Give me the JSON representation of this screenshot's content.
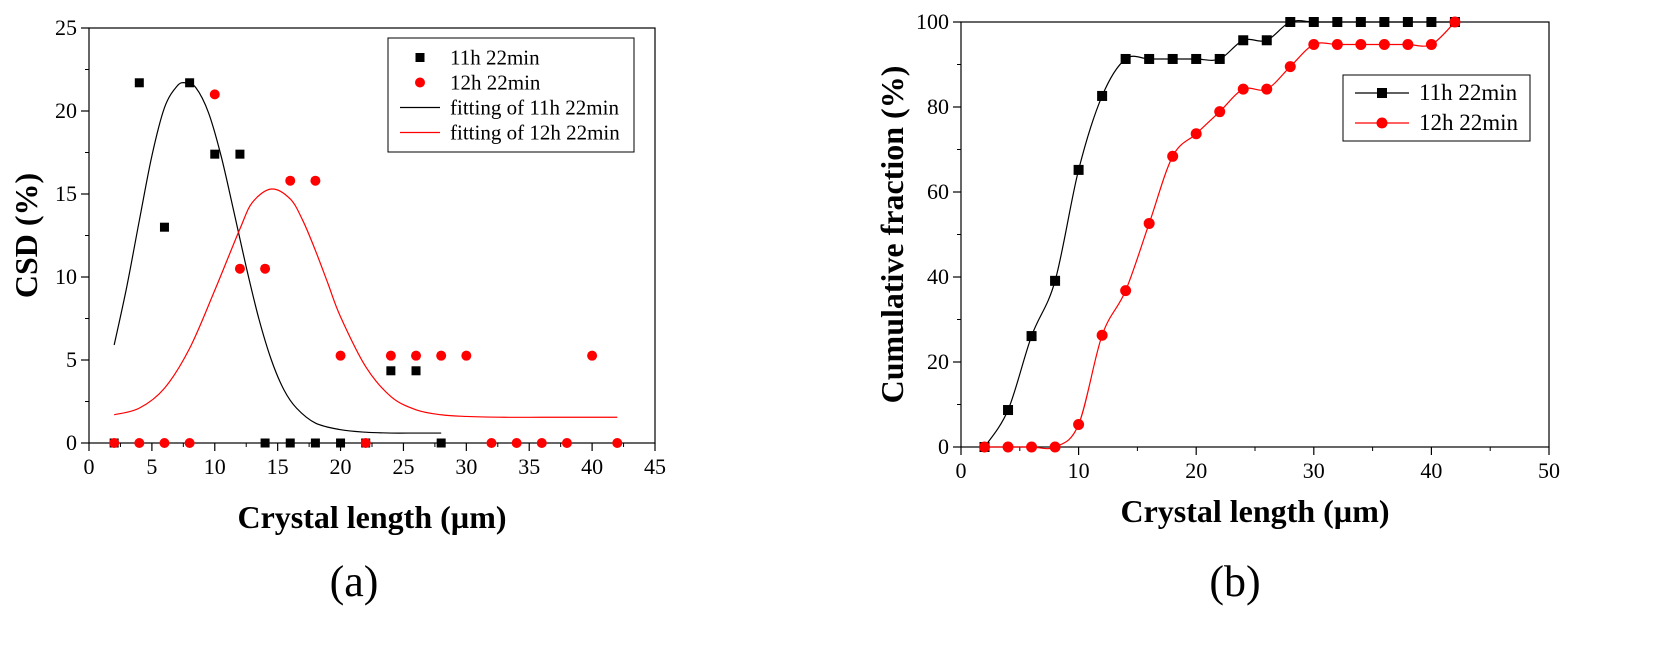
{
  "chart_data": [
    {
      "type": "scatter",
      "panel_label": "(a)",
      "xlabel": "Crystal length (µm)",
      "ylabel": "CSD (%)",
      "xlim": [
        0,
        45
      ],
      "ylim": [
        0,
        25
      ],
      "xticks": [
        0,
        5,
        10,
        15,
        20,
        25,
        30,
        35,
        40,
        45
      ],
      "yticks": [
        0,
        5,
        10,
        15,
        20,
        25
      ],
      "legend_position": "top-right",
      "series": [
        {
          "name": "11h 22min",
          "kind": "scatter",
          "marker": "square",
          "color": "#000000",
          "x": [
            2,
            4,
            6,
            8,
            10,
            12,
            14,
            16,
            18,
            20,
            22,
            24,
            26,
            28
          ],
          "y": [
            0,
            21.7,
            13.0,
            21.7,
            17.4,
            17.4,
            0,
            0,
            0,
            0,
            0,
            4.35,
            4.35,
            0
          ]
        },
        {
          "name": "12h 22min",
          "kind": "scatter",
          "marker": "circle",
          "color": "#ff0000",
          "x": [
            2,
            4,
            6,
            8,
            10,
            12,
            14,
            16,
            18,
            20,
            22,
            24,
            26,
            28,
            30,
            32,
            34,
            36,
            38,
            40,
            42
          ],
          "y": [
            0,
            0,
            0,
            0,
            21.0,
            10.5,
            10.5,
            15.8,
            15.8,
            5.26,
            0,
            5.26,
            5.26,
            5.26,
            5.26,
            0,
            0,
            0,
            0,
            5.26,
            0
          ]
        },
        {
          "name": "fitting of 11h 22min",
          "kind": "line",
          "color": "#000000",
          "x": [
            2,
            3,
            4,
            5,
            6,
            7,
            7.7,
            8.5,
            9.5,
            10.5,
            11.5,
            12.5,
            13.5,
            14.5,
            15.5,
            16.5,
            18,
            20,
            22,
            24,
            26,
            28
          ],
          "y": [
            5.9,
            9.4,
            13.4,
            17.3,
            20.2,
            21.5,
            21.7,
            21.4,
            19.9,
            17.3,
            14.0,
            10.6,
            7.5,
            5.0,
            3.2,
            2.1,
            1.2,
            0.8,
            0.65,
            0.6,
            0.6,
            0.6
          ]
        },
        {
          "name": "fitting of 12h 22min",
          "kind": "line",
          "color": "#ff0000",
          "x": [
            2,
            4,
            6,
            8,
            10,
            12,
            13,
            14.5,
            16,
            17,
            18,
            19,
            20,
            22,
            24,
            26,
            28,
            30,
            33,
            36,
            39,
            42
          ],
          "y": [
            1.7,
            2.1,
            3.3,
            5.7,
            9.2,
            12.9,
            14.5,
            15.3,
            14.7,
            13.4,
            11.6,
            9.6,
            7.6,
            4.6,
            2.8,
            2.0,
            1.7,
            1.6,
            1.55,
            1.55,
            1.55,
            1.55
          ]
        }
      ]
    },
    {
      "type": "line",
      "panel_label": "(b)",
      "xlabel": "Crystal length (µm)",
      "ylabel": "Cumulative fraction (%)",
      "xlim": [
        0,
        50
      ],
      "ylim": [
        0,
        100
      ],
      "xticks": [
        0,
        10,
        20,
        30,
        40,
        50
      ],
      "yticks": [
        0,
        20,
        40,
        60,
        80,
        100
      ],
      "legend_position": "top-right",
      "series": [
        {
          "name": "11h 22min",
          "marker": "square",
          "color": "#000000",
          "x": [
            2,
            4,
            6,
            8,
            10,
            12,
            14,
            16,
            18,
            20,
            22,
            24,
            26,
            28,
            30,
            32,
            34,
            36,
            38,
            40,
            42
          ],
          "y": [
            0,
            8.7,
            26.1,
            39.1,
            65.2,
            82.6,
            91.3,
            91.3,
            91.3,
            91.3,
            91.3,
            95.7,
            95.7,
            100,
            100,
            100,
            100,
            100,
            100,
            100,
            100
          ]
        },
        {
          "name": "12h 22min",
          "marker": "circle",
          "color": "#ff0000",
          "x": [
            2,
            4,
            6,
            8,
            10,
            12,
            14,
            16,
            18,
            20,
            22,
            24,
            26,
            28,
            30,
            32,
            34,
            36,
            38,
            40,
            42
          ],
          "y": [
            0,
            0,
            0,
            0,
            5.3,
            26.3,
            36.8,
            52.6,
            68.4,
            73.7,
            78.9,
            84.2,
            84.2,
            89.5,
            94.7,
            94.7,
            94.7,
            94.7,
            94.7,
            94.7,
            100
          ]
        }
      ]
    }
  ]
}
